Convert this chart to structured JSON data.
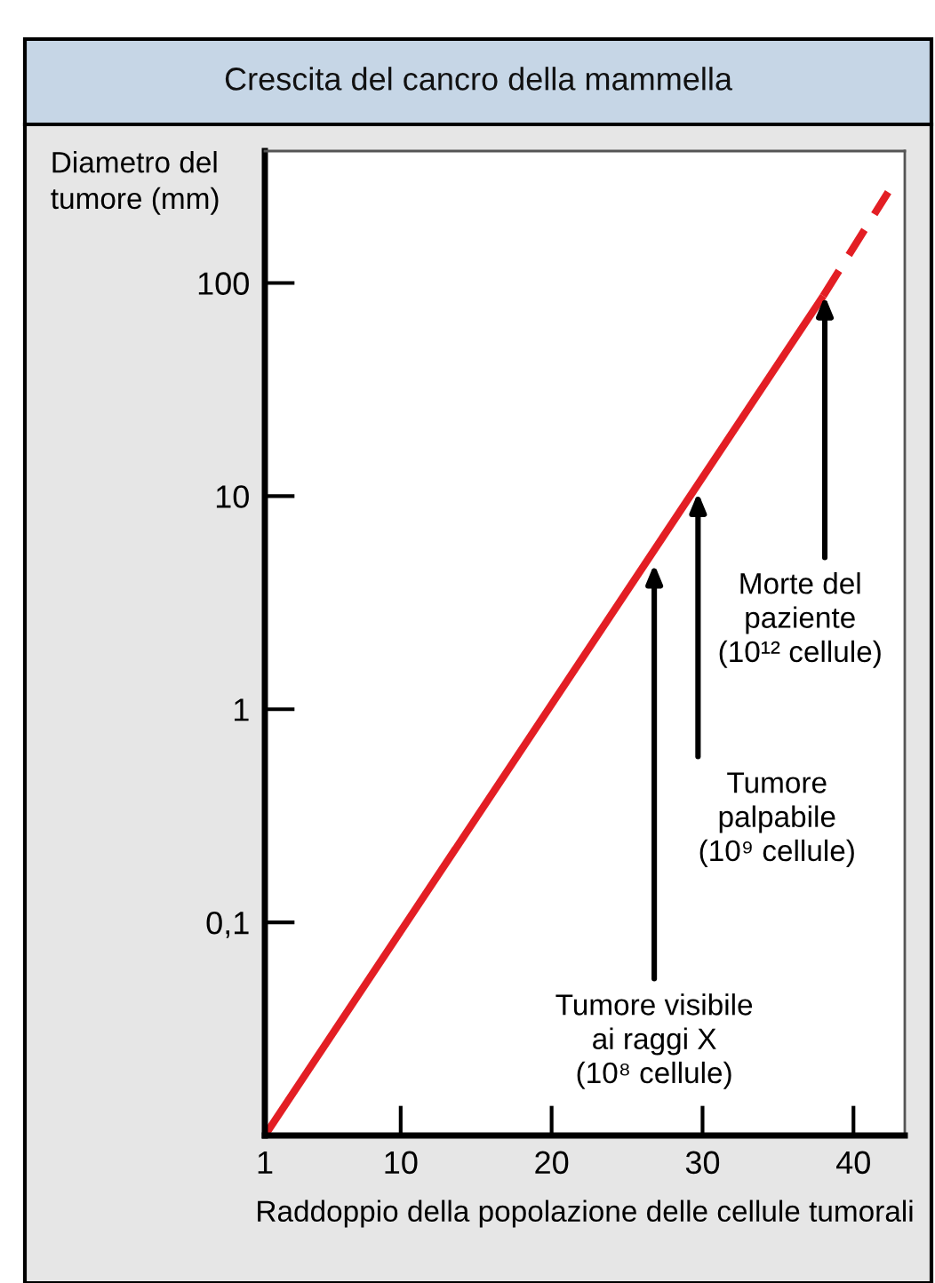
{
  "chart_data": {
    "type": "line",
    "title": "Crescita del cancro della mammella",
    "xlabel": "Raddoppio della popolazione delle cellule tumorali",
    "ylabel": "Diametro del\ntumore (mm)",
    "log": "y",
    "xlim": [
      1,
      43.4
    ],
    "ylim": [
      0.01,
      416
    ],
    "xticks": [
      1,
      10,
      20,
      30,
      40
    ],
    "yticks": [
      {
        "value": 0.1,
        "label": "0,1"
      },
      1,
      10,
      100
    ],
    "grid": false,
    "legend": false,
    "marker": "none",
    "series": [
      {
        "color": "#e31e24",
        "x": [
          1,
          38.0
        ],
        "values": [
          0.01,
          87
        ],
        "line_style": "solid"
      },
      {
        "color": "#e31e24",
        "x": [
          38.0,
          42.3
        ],
        "values": [
          87,
          267
        ],
        "line_style": "dashed"
      }
    ],
    "annotations": [
      {
        "text": "Morte del\npaziente\n(10¹² cellule)",
        "x": 38.1,
        "y": 87
      },
      {
        "text": "Tumore\npalpabile\n(10⁹ cellule)",
        "x": 29.7,
        "y": 10.4
      },
      {
        "text": "Tumore visibile\nai raggi X\n(10⁸ cellule)",
        "x": 26.8,
        "y": 4.8
      }
    ]
  }
}
